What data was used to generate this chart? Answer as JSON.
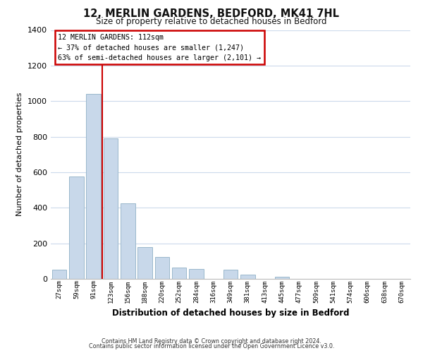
{
  "title": "12, MERLIN GARDENS, BEDFORD, MK41 7HL",
  "subtitle": "Size of property relative to detached houses in Bedford",
  "xlabel": "Distribution of detached houses by size in Bedford",
  "ylabel": "Number of detached properties",
  "bar_labels": [
    "27sqm",
    "59sqm",
    "91sqm",
    "123sqm",
    "156sqm",
    "188sqm",
    "220sqm",
    "252sqm",
    "284sqm",
    "316sqm",
    "349sqm",
    "381sqm",
    "413sqm",
    "445sqm",
    "477sqm",
    "509sqm",
    "541sqm",
    "574sqm",
    "606sqm",
    "638sqm",
    "670sqm"
  ],
  "bar_values": [
    50,
    575,
    1040,
    790,
    425,
    180,
    125,
    65,
    55,
    0,
    50,
    25,
    0,
    10,
    0,
    0,
    0,
    0,
    0,
    0,
    0
  ],
  "bar_color": "#c8d8ea",
  "bar_edge_color": "#9ab8cc",
  "marker_line_color": "#cc0000",
  "ylim": [
    0,
    1400
  ],
  "yticks": [
    0,
    200,
    400,
    600,
    800,
    1000,
    1200,
    1400
  ],
  "annotation_title": "12 MERLIN GARDENS: 112sqm",
  "annotation_line1": "← 37% of detached houses are smaller (1,247)",
  "annotation_line2": "63% of semi-detached houses are larger (2,101) →",
  "annotation_box_color": "#ffffff",
  "annotation_box_edge": "#cc0000",
  "footer1": "Contains HM Land Registry data © Crown copyright and database right 2024.",
  "footer2": "Contains public sector information licensed under the Open Government Licence v3.0.",
  "background_color": "#ffffff",
  "grid_color": "#ccdaec"
}
